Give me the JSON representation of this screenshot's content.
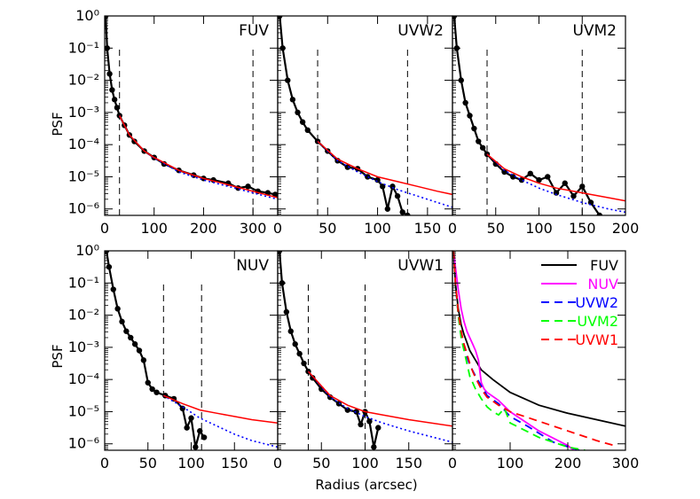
{
  "figure": {
    "xlabel": "Radius (arcsec)",
    "ylabel": "PSF"
  },
  "chart_data": [
    {
      "type": "line",
      "title": "FUV",
      "xlim": [
        0,
        350
      ],
      "ylim_log10": [
        -6.2,
        0
      ],
      "xticks": [
        0,
        100,
        200,
        300
      ],
      "vlines": [
        30,
        300
      ],
      "data_series": {
        "name": "data",
        "color": "#000000",
        "x": [
          2,
          5,
          10,
          15,
          20,
          25,
          30,
          40,
          50,
          60,
          80,
          100,
          120,
          150,
          180,
          200,
          220,
          250,
          270,
          290,
          310,
          330,
          345
        ],
        "log10": [
          0,
          -1.0,
          -1.8,
          -2.3,
          -2.6,
          -2.85,
          -3.1,
          -3.4,
          -3.7,
          -3.9,
          -4.2,
          -4.4,
          -4.6,
          -4.8,
          -4.95,
          -5.05,
          -5.1,
          -5.2,
          -5.35,
          -5.3,
          -5.45,
          -5.5,
          -5.55
        ]
      },
      "fit_red": {
        "name": "fit",
        "color": "#ff0000",
        "x": [
          30,
          50,
          80,
          100,
          150,
          200,
          250,
          300,
          350
        ],
        "log10": [
          -3.1,
          -3.7,
          -4.2,
          -4.4,
          -4.8,
          -5.05,
          -5.25,
          -5.45,
          -5.65
        ]
      },
      "fit_blue": {
        "name": "fit",
        "color": "#0000ff",
        "x": [
          30,
          50,
          80,
          100,
          150,
          200,
          250,
          300,
          350
        ],
        "log10": [
          -3.1,
          -3.7,
          -4.2,
          -4.42,
          -4.85,
          -5.1,
          -5.3,
          -5.5,
          -5.7
        ]
      }
    },
    {
      "type": "line",
      "title": "UVW2",
      "xlim": [
        0,
        175
      ],
      "ylim_log10": [
        -6.2,
        0
      ],
      "xticks": [
        0,
        50,
        100,
        150
      ],
      "vlines": [
        40,
        130
      ],
      "data_series": {
        "name": "data",
        "color": "#000000",
        "x": [
          2,
          5,
          10,
          15,
          20,
          25,
          30,
          40,
          50,
          60,
          70,
          80,
          90,
          100,
          105,
          110,
          115,
          120,
          125,
          130
        ],
        "log10": [
          0,
          -1.0,
          -2.0,
          -2.6,
          -3.0,
          -3.3,
          -3.55,
          -3.9,
          -4.2,
          -4.5,
          -4.7,
          -4.75,
          -5.0,
          -5.1,
          -5.3,
          -6.0,
          -5.3,
          -5.6,
          -6.1,
          -6.2
        ]
      },
      "fit_red": {
        "name": "fit",
        "color": "#ff0000",
        "x": [
          40,
          60,
          80,
          100,
          120,
          140,
          160,
          175
        ],
        "log10": [
          -3.9,
          -4.45,
          -4.75,
          -5.0,
          -5.15,
          -5.3,
          -5.45,
          -5.55
        ]
      },
      "fit_blue": {
        "name": "fit",
        "color": "#0000ff",
        "x": [
          40,
          60,
          80,
          100,
          120,
          140,
          160,
          175
        ],
        "log10": [
          -3.9,
          -4.5,
          -4.85,
          -5.15,
          -5.4,
          -5.6,
          -5.8,
          -5.95
        ]
      }
    },
    {
      "type": "line",
      "title": "UVM2",
      "xlim": [
        0,
        200
      ],
      "ylim_log10": [
        -6.2,
        0
      ],
      "xticks": [
        0,
        50,
        100,
        150,
        200
      ],
      "vlines": [
        40,
        150
      ],
      "data_series": {
        "name": "data",
        "color": "#000000",
        "x": [
          2,
          5,
          10,
          15,
          20,
          25,
          30,
          35,
          40,
          50,
          60,
          70,
          80,
          90,
          100,
          110,
          120,
          130,
          140,
          150,
          160,
          170
        ],
        "log10": [
          0,
          -1.0,
          -2.0,
          -2.7,
          -3.1,
          -3.5,
          -3.9,
          -4.1,
          -4.3,
          -4.6,
          -4.85,
          -5.0,
          -5.1,
          -4.9,
          -5.1,
          -5.0,
          -5.5,
          -5.2,
          -5.6,
          -5.3,
          -5.8,
          -6.2
        ]
      },
      "fit_red": {
        "name": "fit",
        "color": "#ff0000",
        "x": [
          40,
          60,
          80,
          100,
          120,
          150,
          180,
          200
        ],
        "log10": [
          -4.3,
          -4.75,
          -5.0,
          -5.2,
          -5.35,
          -5.5,
          -5.65,
          -5.75
        ]
      },
      "fit_blue": {
        "name": "fit",
        "color": "#0000ff",
        "x": [
          40,
          60,
          80,
          100,
          120,
          150,
          180,
          200
        ],
        "log10": [
          -4.3,
          -4.8,
          -5.1,
          -5.35,
          -5.55,
          -5.8,
          -6.0,
          -6.1
        ]
      }
    },
    {
      "type": "line",
      "title": "NUV",
      "xlim": [
        0,
        200
      ],
      "ylim_log10": [
        -6.2,
        0
      ],
      "xticks": [
        0,
        50,
        100,
        150
      ],
      "vlines": [
        68,
        112
      ],
      "data_series": {
        "name": "data",
        "color": "#000000",
        "x": [
          2,
          5,
          10,
          15,
          20,
          25,
          30,
          35,
          40,
          45,
          50,
          55,
          60,
          70,
          80,
          90,
          95,
          100,
          105,
          110,
          115
        ],
        "log10": [
          0,
          -0.5,
          -1.2,
          -1.8,
          -2.2,
          -2.5,
          -2.7,
          -2.9,
          -3.1,
          -3.4,
          -4.1,
          -4.3,
          -4.4,
          -4.5,
          -4.6,
          -4.9,
          -5.5,
          -5.2,
          -6.1,
          -5.6,
          -5.8
        ]
      },
      "fit_red": {
        "name": "fit",
        "color": "#ff0000",
        "x": [
          68,
          90,
          110,
          130,
          150,
          170,
          200
        ],
        "log10": [
          -4.5,
          -4.75,
          -4.95,
          -5.05,
          -5.15,
          -5.25,
          -5.35
        ]
      },
      "fit_blue": {
        "name": "fit",
        "color": "#0000ff",
        "x": [
          68,
          90,
          110,
          130,
          150,
          170,
          200
        ],
        "log10": [
          -4.5,
          -4.85,
          -5.2,
          -5.45,
          -5.7,
          -5.9,
          -6.1
        ]
      }
    },
    {
      "type": "line",
      "title": "UVW1",
      "xlim": [
        0,
        200
      ],
      "ylim_log10": [
        -6.2,
        0
      ],
      "xticks": [
        0,
        50,
        100,
        150
      ],
      "vlines": [
        35,
        100
      ],
      "data_series": {
        "name": "data",
        "color": "#000000",
        "x": [
          2,
          5,
          10,
          15,
          20,
          25,
          30,
          35,
          40,
          50,
          60,
          70,
          80,
          90,
          95,
          100,
          105,
          110,
          115
        ],
        "log10": [
          0,
          -1.0,
          -1.9,
          -2.5,
          -2.9,
          -3.2,
          -3.5,
          -3.75,
          -3.95,
          -4.3,
          -4.55,
          -4.75,
          -4.95,
          -5.0,
          -5.4,
          -5.0,
          -5.3,
          -6.1,
          -5.5
        ]
      },
      "fit_red": {
        "name": "fit",
        "color": "#ff0000",
        "x": [
          35,
          60,
          80,
          100,
          120,
          150,
          200
        ],
        "log10": [
          -3.75,
          -4.5,
          -4.8,
          -5.0,
          -5.1,
          -5.25,
          -5.45
        ]
      },
      "fit_blue": {
        "name": "fit",
        "color": "#0000ff",
        "x": [
          35,
          60,
          80,
          100,
          120,
          150,
          200
        ],
        "log10": [
          -3.75,
          -4.55,
          -4.9,
          -5.15,
          -5.35,
          -5.6,
          -5.95
        ]
      }
    },
    {
      "type": "line",
      "title": "",
      "xlim": [
        0,
        300
      ],
      "ylim_log10": [
        -6.2,
        0
      ],
      "xticks": [
        0,
        100,
        200,
        300
      ],
      "vlines": [],
      "legend": [
        {
          "name": "FUV",
          "color": "#000000",
          "dash": "solid"
        },
        {
          "name": "NUV",
          "color": "#ff00ff",
          "dash": "solid"
        },
        {
          "name": "UVW2",
          "color": "#0000ff",
          "dash": "dashed"
        },
        {
          "name": "UVM2",
          "color": "#00ff00",
          "dash": "dashed"
        },
        {
          "name": "UVW1",
          "color": "#ff0000",
          "dash": "dashed"
        }
      ],
      "series": [
        {
          "name": "FUV",
          "color": "#000000",
          "dash": "solid",
          "x": [
            2,
            5,
            10,
            15,
            20,
            25,
            30,
            40,
            50,
            70,
            100,
            150,
            200,
            250,
            300
          ],
          "log10": [
            0,
            -1.0,
            -1.8,
            -2.3,
            -2.6,
            -2.85,
            -3.1,
            -3.4,
            -3.7,
            -4.0,
            -4.4,
            -4.8,
            -5.05,
            -5.25,
            -5.45
          ]
        },
        {
          "name": "NUV",
          "color": "#ff00ff",
          "dash": "solid",
          "x": [
            2,
            5,
            10,
            15,
            20,
            25,
            30,
            35,
            40,
            45,
            50,
            55,
            60,
            80,
            100,
            150,
            200,
            210
          ],
          "log10": [
            0,
            -0.5,
            -1.2,
            -1.8,
            -2.2,
            -2.5,
            -2.7,
            -2.9,
            -3.1,
            -3.4,
            -4.1,
            -4.3,
            -4.4,
            -4.65,
            -5.0,
            -5.6,
            -6.05,
            -6.2
          ]
        },
        {
          "name": "UVW2",
          "color": "#0000ff",
          "dash": "dashed",
          "x": [
            2,
            5,
            10,
            15,
            20,
            25,
            30,
            40,
            50,
            60,
            80,
            100,
            130,
            175,
            220
          ],
          "log10": [
            0,
            -1.0,
            -2.0,
            -2.6,
            -3.0,
            -3.3,
            -3.55,
            -3.9,
            -4.2,
            -4.5,
            -4.75,
            -5.15,
            -5.45,
            -5.95,
            -6.2
          ]
        },
        {
          "name": "UVM2",
          "color": "#00ff00",
          "dash": "dashed",
          "x": [
            2,
            5,
            10,
            15,
            20,
            25,
            30,
            35,
            40,
            50,
            60,
            70,
            80,
            90,
            100,
            150,
            200,
            230
          ],
          "log10": [
            0,
            -1.0,
            -2.0,
            -2.7,
            -3.1,
            -3.5,
            -3.9,
            -4.1,
            -4.3,
            -4.6,
            -4.85,
            -5.0,
            -5.1,
            -4.9,
            -5.35,
            -5.8,
            -6.1,
            -6.2
          ]
        },
        {
          "name": "UVW1",
          "color": "#ff0000",
          "dash": "dashed",
          "x": [
            2,
            5,
            10,
            15,
            20,
            25,
            30,
            35,
            40,
            50,
            60,
            80,
            100,
            150,
            200,
            250,
            280
          ],
          "log10": [
            0,
            -1.0,
            -1.9,
            -2.5,
            -2.9,
            -3.2,
            -3.5,
            -3.75,
            -3.95,
            -4.3,
            -4.55,
            -4.8,
            -5.0,
            -5.3,
            -5.6,
            -5.9,
            -6.05
          ]
        }
      ]
    }
  ]
}
